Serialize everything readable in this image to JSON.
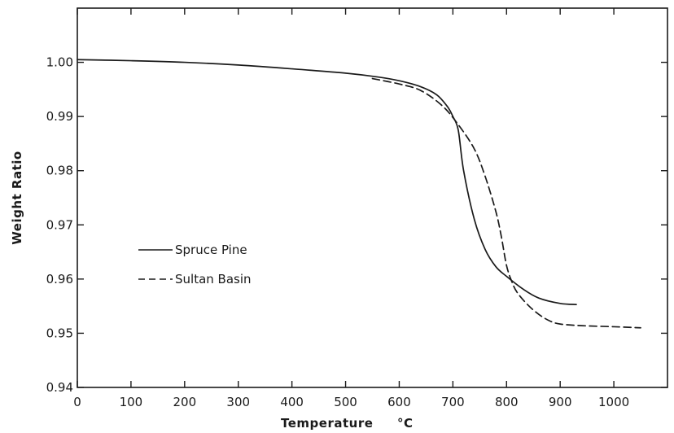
{
  "chart_data": {
    "type": "line",
    "title": "",
    "xlabel": "Temperature",
    "xlabel_unit": "°C",
    "ylabel": "Weight Ratio",
    "xlim": [
      0,
      1100
    ],
    "ylim": [
      0.94,
      1.01
    ],
    "x_ticks": [
      0,
      100,
      200,
      300,
      400,
      500,
      600,
      700,
      800,
      900,
      1000
    ],
    "x_tick_labels": [
      "0",
      "100",
      "200",
      "300",
      "400",
      "500",
      "600",
      "700",
      "800",
      "900",
      "1000"
    ],
    "y_ticks": [
      0.94,
      0.95,
      0.96,
      0.97,
      0.98,
      0.99,
      1.0
    ],
    "y_tick_labels": [
      "0.94",
      "0.95",
      "0.96",
      "0.97",
      "0.98",
      "0.99",
      "1.00"
    ],
    "grid": false,
    "legend_position": "left",
    "series": [
      {
        "name": "Spruce Pine",
        "style": "solid",
        "color": "#1a1a1a",
        "x": [
          0,
          100,
          200,
          300,
          400,
          500,
          560,
          600,
          640,
          670,
          690,
          700,
          710,
          720,
          740,
          760,
          780,
          800,
          830,
          860,
          900,
          930
        ],
        "y": [
          1.0005,
          1.0003,
          1.0,
          0.9995,
          0.9988,
          0.998,
          0.9973,
          0.9966,
          0.9955,
          0.994,
          0.9918,
          0.99,
          0.9875,
          0.98,
          0.971,
          0.9655,
          0.9623,
          0.9605,
          0.9582,
          0.9565,
          0.9555,
          0.9553
        ]
      },
      {
        "name": "Sultan Basin",
        "style": "dashed",
        "color": "#1a1a1a",
        "x": [
          550,
          600,
          640,
          680,
          710,
          740,
          760,
          780,
          790,
          800,
          810,
          820,
          840,
          860,
          880,
          900,
          940,
          1000,
          1050
        ],
        "y": [
          0.997,
          0.996,
          0.9948,
          0.992,
          0.9885,
          0.984,
          0.979,
          0.9725,
          0.968,
          0.9625,
          0.9595,
          0.9575,
          0.9552,
          0.9535,
          0.9523,
          0.9517,
          0.9514,
          0.9512,
          0.951
        ]
      }
    ]
  }
}
